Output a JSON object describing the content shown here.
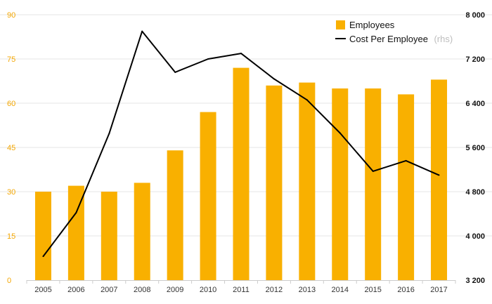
{
  "chart_data": {
    "type": "bar+line",
    "title": "",
    "xlabel": "",
    "ylabel": "",
    "categories": [
      "2005",
      "2006",
      "2007",
      "2008",
      "2009",
      "2010",
      "2011",
      "2012",
      "2013",
      "2014",
      "2015",
      "2016",
      "2017"
    ],
    "series": [
      {
        "name": "Employees",
        "kind": "bar",
        "axis": "left",
        "color": "#f9b000",
        "values": [
          30,
          32,
          30,
          33,
          44,
          57,
          72,
          66,
          67,
          65,
          65,
          63,
          68
        ]
      },
      {
        "name": "Cost Per Employee",
        "legend_suffix": "(rhs)",
        "kind": "line",
        "axis": "right",
        "color": "#000000",
        "values": [
          3630,
          4420,
          5850,
          7700,
          6960,
          7200,
          7300,
          6840,
          6460,
          5860,
          5170,
          5360,
          5100
        ]
      }
    ],
    "y_left": {
      "ylim": [
        0,
        90
      ],
      "ticks": [
        0,
        15,
        30,
        45,
        60,
        75,
        90
      ],
      "tick_labels": [
        "0",
        "15",
        "30",
        "45",
        "60",
        "75",
        "90"
      ],
      "color": "#f3a600"
    },
    "y_right": {
      "ylim": [
        3200,
        8000
      ],
      "ticks": [
        3200,
        4000,
        4800,
        5600,
        6400,
        7200,
        8000
      ],
      "tick_labels": [
        "3 200",
        "4 000",
        "4 800",
        "5 600",
        "6 400",
        "7 200",
        "8 000"
      ],
      "color": "#111111"
    },
    "grid": true,
    "legend": "top-right"
  }
}
